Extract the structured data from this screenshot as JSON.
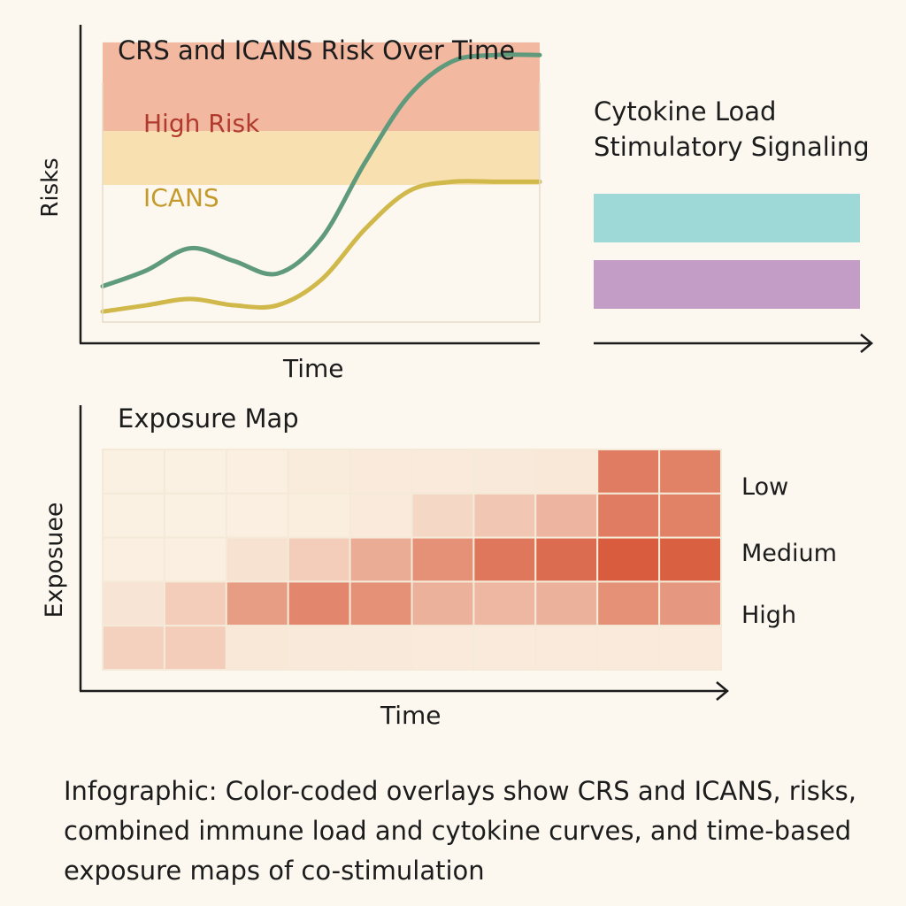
{
  "risk_panel": {
    "title": "CRS and ICANS Risk Over Time",
    "ylabel": "Risks",
    "xlabel": "Time",
    "bands": [
      {
        "label": "High Risk",
        "color": "#f2b8a0",
        "label_color": "#b03a2e"
      },
      {
        "label": "ICANS",
        "color": "#f8e0b0",
        "label_color": "#c49a2c"
      }
    ]
  },
  "side_panel": {
    "title_lines": [
      "Cytokine Load",
      "Stimulatory Signaling"
    ],
    "bars": [
      {
        "color": "#9ed9d8"
      },
      {
        "color": "#c49dc6"
      }
    ]
  },
  "exposure_panel": {
    "title": "Exposure Map",
    "ylabel": "Exposuee",
    "xlabel": "Time",
    "levels": [
      "Low",
      "Medium",
      "High"
    ]
  },
  "caption": "Infographic: Color-coded overlays show CRS and ICANS, risks, combined immune load and cytokine curves, and time-based exposure maps of co-stimulation",
  "chart_data": [
    {
      "type": "line",
      "title": "CRS and ICANS Risk Over Time",
      "xlabel": "Time",
      "ylabel": "Risks",
      "x": [
        0,
        1,
        2,
        3,
        4,
        5,
        6,
        7,
        8,
        9,
        10
      ],
      "ylim": [
        0,
        10
      ],
      "grid": false,
      "series": [
        {
          "color": "#5f9a7c",
          "values": [
            1.8,
            2.3,
            3.0,
            2.6,
            2.2,
            3.3,
            5.7,
            7.8,
            8.9,
            9.1,
            9.1
          ]
        },
        {
          "color": "#d0b84a",
          "values": [
            1.0,
            1.2,
            1.4,
            1.2,
            1.2,
            2.0,
            3.6,
            4.8,
            5.1,
            5.1,
            5.1
          ]
        }
      ],
      "bands": [
        {
          "label": "High Risk",
          "range": [
            6.7,
            9.5
          ]
        },
        {
          "label": "ICANS",
          "range": [
            5.0,
            6.7
          ]
        }
      ]
    },
    {
      "type": "heatmap",
      "title": "Exposure Map",
      "xlabel": "Time",
      "ylabel": "Exposuee",
      "columns": 10,
      "rows": 5,
      "row_labels_right": [
        "Low",
        "Medium",
        "High"
      ],
      "values": [
        [
          0.02,
          0.02,
          0.03,
          0.05,
          0.06,
          0.06,
          0.07,
          0.08,
          0.75,
          0.72
        ],
        [
          0.02,
          0.02,
          0.03,
          0.04,
          0.06,
          0.18,
          0.28,
          0.4,
          0.75,
          0.72
        ],
        [
          0.03,
          0.03,
          0.12,
          0.25,
          0.45,
          0.62,
          0.78,
          0.85,
          0.95,
          0.92
        ],
        [
          0.1,
          0.25,
          0.55,
          0.68,
          0.62,
          0.42,
          0.38,
          0.42,
          0.62,
          0.58
        ],
        [
          0.22,
          0.25,
          0.08,
          0.07,
          0.07,
          0.06,
          0.06,
          0.06,
          0.06,
          0.06
        ]
      ]
    }
  ]
}
